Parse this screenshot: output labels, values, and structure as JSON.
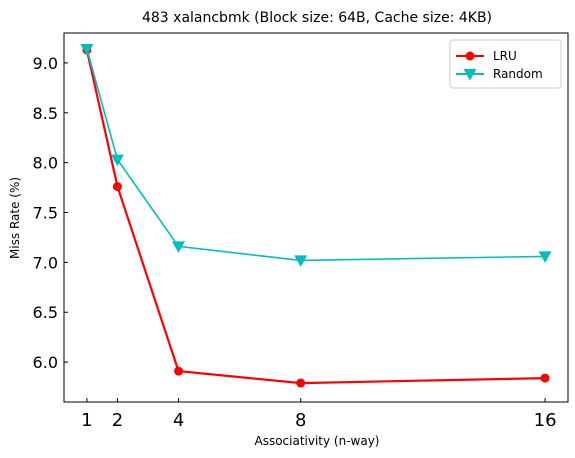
{
  "chart_data": {
    "type": "line",
    "title": "483 xalancbmk (Block size: 64B, Cache size: 4KB)",
    "xlabel": "Associativity (n-way)",
    "ylabel": "Miss Rate (%)",
    "x": [
      1,
      2,
      4,
      8,
      16
    ],
    "xticks": [
      "1",
      "2",
      "4",
      "8",
      "16"
    ],
    "yticks": [
      "6.0",
      "6.5",
      "7.0",
      "7.5",
      "8.0",
      "8.5",
      "9.0"
    ],
    "ytick_values": [
      6.0,
      6.5,
      7.0,
      7.5,
      8.0,
      8.5,
      9.0
    ],
    "xlim": [
      0.25,
      16.75
    ],
    "ylim": [
      5.6,
      9.3
    ],
    "grid": false,
    "legend_position": "top-right",
    "series": [
      {
        "name": "LRU",
        "color": "#ff0000",
        "marker": "circle",
        "values": [
          9.13,
          7.76,
          5.91,
          5.79,
          5.84
        ]
      },
      {
        "name": "Random",
        "color": "#00bfbf",
        "marker": "triangle-down",
        "values": [
          9.14,
          8.03,
          7.16,
          7.02,
          7.06
        ]
      }
    ]
  }
}
